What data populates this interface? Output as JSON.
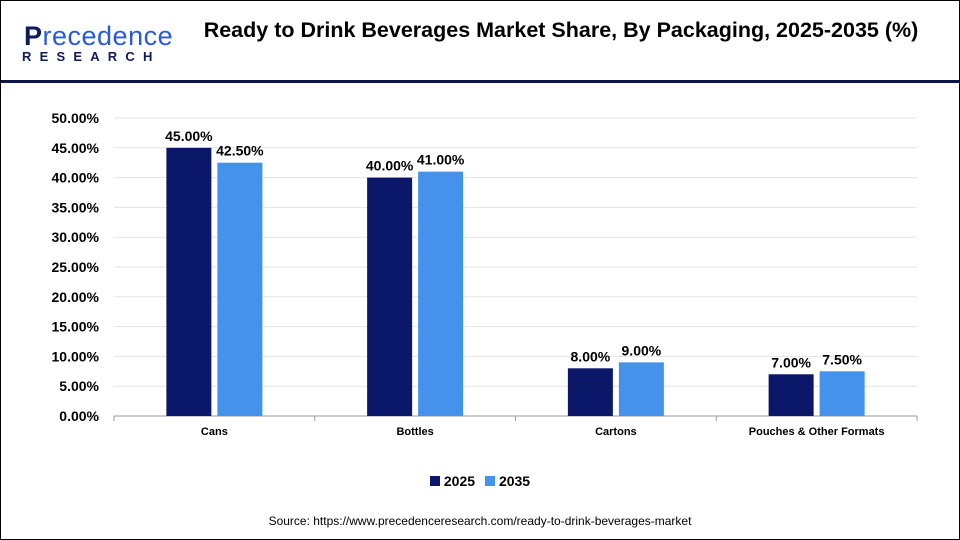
{
  "logo": {
    "line1": "Precedence",
    "line2": "RESEARCH"
  },
  "title": "Ready to Drink Beverages Market Share, By Packaging, 2025-2035 (%)",
  "source": "Source: https://www.precedenceresearch.com/ready-to-drink-beverages-market",
  "chart_data": {
    "type": "bar",
    "title": "Ready to Drink Beverages Market Share, By Packaging, 2025-2035 (%)",
    "categories": [
      "Cans",
      "Bottles",
      "Cartons",
      "Pouches & Other Formats"
    ],
    "series": [
      {
        "name": "2025",
        "values": [
          45.0,
          40.0,
          8.0,
          7.0
        ],
        "color": "#0b1769",
        "labels": [
          "45.00%",
          "40.00%",
          "8.00%",
          "7.00%"
        ]
      },
      {
        "name": "2035",
        "values": [
          42.5,
          41.0,
          9.0,
          7.5
        ],
        "color": "#4592ec",
        "labels": [
          "42.50%",
          "41.00%",
          "9.00%",
          "7.50%"
        ]
      }
    ],
    "ylim": [
      0,
      50
    ],
    "yticks": [
      "0.00%",
      "5.00%",
      "10.00%",
      "15.00%",
      "20.00%",
      "25.00%",
      "30.00%",
      "35.00%",
      "40.00%",
      "45.00%",
      "50.00%"
    ],
    "grid": true,
    "legend": "bottom"
  }
}
